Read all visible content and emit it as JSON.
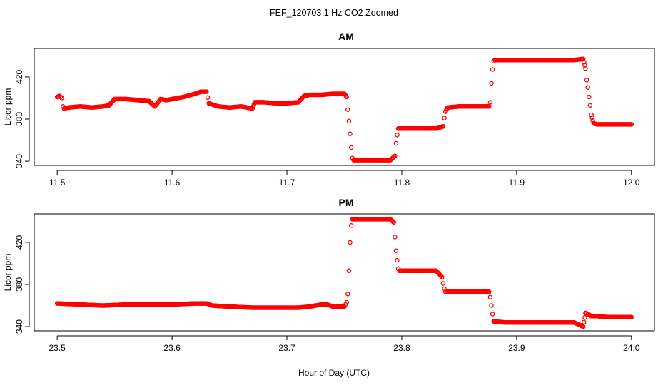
{
  "figure": {
    "title": "FEF_120703 1 Hz CO2 Zoomed",
    "xlabel": "Hour of Day (UTC)"
  },
  "colors": {
    "points": "#ff0000",
    "axes": "#000000",
    "background": "#ffffff"
  },
  "chart_data": [
    {
      "type": "scatter",
      "title": "AM",
      "ylabel": "Licor ppm",
      "xlim": [
        11.48,
        12.02
      ],
      "ylim": [
        336,
        447
      ],
      "xticks": [
        11.5,
        11.6,
        11.7,
        11.8,
        11.9,
        12.0
      ],
      "xtick_labels": [
        "11.5",
        "11.6",
        "11.7",
        "11.8",
        "11.9",
        "12.0"
      ],
      "yticks": [
        340,
        380,
        420
      ],
      "ytick_labels": [
        "340",
        "380",
        "420"
      ],
      "grid": false,
      "series": [
        {
          "x": [
            11.5,
            11.502,
            11.504,
            11.505,
            11.506,
            11.51,
            11.52,
            11.53,
            11.54,
            11.545,
            11.55,
            11.56,
            11.57,
            11.58,
            11.585,
            11.59,
            11.595,
            11.6,
            11.61,
            11.62,
            11.625,
            11.63,
            11.632,
            11.64,
            11.65,
            11.66,
            11.67,
            11.672,
            11.68,
            11.69,
            11.7,
            11.71,
            11.715,
            11.72,
            11.73,
            11.74,
            11.75,
            11.752,
            11.753,
            11.754,
            11.755,
            11.756,
            11.757,
            11.758,
            11.77,
            11.78,
            11.79,
            11.794,
            11.795,
            11.796,
            11.797,
            11.8,
            11.81,
            11.82,
            11.83,
            11.836,
            11.837,
            11.838,
            11.84,
            11.85,
            11.86,
            11.87,
            11.876,
            11.877,
            11.878,
            11.879,
            11.88,
            11.881,
            11.89,
            11.9,
            11.91,
            11.92,
            11.93,
            11.94,
            11.95,
            11.958,
            11.96,
            11.961,
            11.962,
            11.963,
            11.964,
            11.965,
            11.967,
            11.97,
            11.98,
            11.99,
            12.0
          ],
          "y": [
            401,
            402,
            400,
            392,
            390,
            391,
            392,
            391,
            392,
            393,
            399,
            399,
            398,
            397,
            392,
            399,
            398,
            399,
            401,
            404,
            406,
            406,
            395,
            392,
            391,
            392,
            390,
            396,
            396,
            395,
            395,
            396,
            402,
            403,
            403,
            404,
            404,
            401,
            389,
            378,
            366,
            353,
            343,
            341,
            341,
            341,
            341,
            345,
            357,
            365,
            371,
            371,
            371,
            371,
            371,
            373,
            381,
            387,
            391,
            392,
            392,
            392,
            392,
            396,
            414,
            427,
            435,
            436,
            436,
            436,
            436,
            436,
            436,
            436,
            436,
            437,
            428,
            417,
            410,
            401,
            393,
            384,
            376,
            375,
            375,
            375,
            375
          ]
        }
      ]
    },
    {
      "type": "scatter",
      "title": "PM",
      "ylabel": "Licor ppm",
      "xlim": [
        23.48,
        24.02
      ],
      "ylim": [
        336,
        447
      ],
      "xticks": [
        23.5,
        23.6,
        23.7,
        23.8,
        23.9,
        24.0
      ],
      "xtick_labels": [
        "23.5",
        "23.6",
        "23.7",
        "23.8",
        "23.9",
        "24.0"
      ],
      "yticks": [
        340,
        380,
        420
      ],
      "ytick_labels": [
        "340",
        "380",
        "420"
      ],
      "grid": false,
      "series": [
        {
          "x": [
            23.5,
            23.52,
            23.54,
            23.56,
            23.58,
            23.6,
            23.62,
            23.63,
            23.635,
            23.65,
            23.67,
            23.69,
            23.71,
            23.72,
            23.73,
            23.735,
            23.74,
            23.75,
            23.752,
            23.753,
            23.754,
            23.755,
            23.756,
            23.757,
            23.76,
            23.77,
            23.78,
            23.79,
            23.793,
            23.794,
            23.795,
            23.796,
            23.797,
            23.798,
            23.8,
            23.81,
            23.82,
            23.83,
            23.835,
            23.836,
            23.837,
            23.838,
            23.84,
            23.85,
            23.86,
            23.87,
            23.876,
            23.877,
            23.878,
            23.879,
            23.88,
            23.89,
            23.9,
            23.91,
            23.92,
            23.93,
            23.94,
            23.95,
            23.958,
            23.96,
            23.962,
            23.965,
            23.97,
            23.98,
            23.99,
            24.0
          ],
          "y": [
            362,
            361,
            360,
            361,
            361,
            361,
            362,
            362,
            360,
            359,
            358,
            358,
            358,
            359,
            361,
            361,
            359,
            359,
            363,
            371,
            393,
            420,
            436,
            442,
            442,
            442,
            442,
            442,
            439,
            425,
            412,
            403,
            395,
            393,
            393,
            393,
            393,
            393,
            387,
            381,
            376,
            373,
            373,
            373,
            373,
            373,
            373,
            368,
            360,
            352,
            345,
            344,
            344,
            344,
            344,
            344,
            344,
            344,
            340,
            353,
            352,
            350,
            350,
            349,
            349,
            349
          ]
        }
      ]
    }
  ]
}
